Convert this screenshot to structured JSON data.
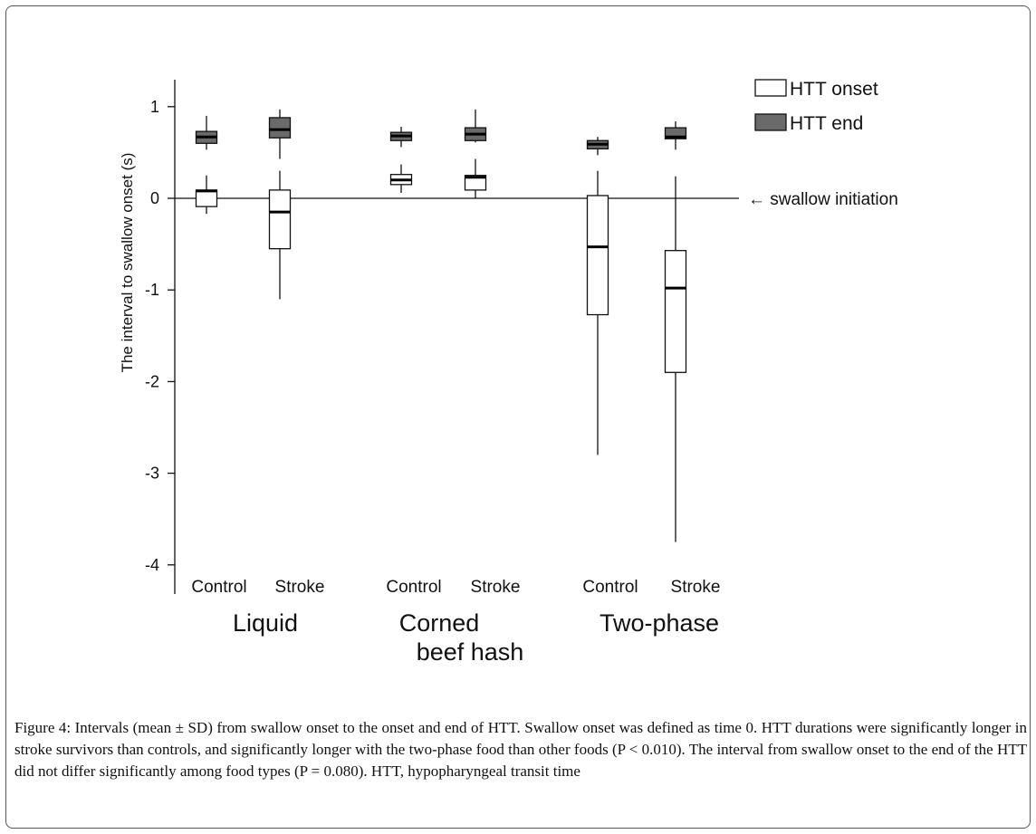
{
  "chart_data": {
    "type": "boxplot",
    "ylabel": "The interval to swallow onset (s)",
    "ylim": [
      -4.3,
      1.3
    ],
    "yticks": [
      -4,
      -3,
      -2,
      -1,
      0,
      1
    ],
    "ytick_labels": [
      "-4",
      "-3",
      "-2",
      "-1",
      "0",
      "1"
    ],
    "groups": [
      {
        "label": "Liquid",
        "label_lines": [
          "Liquid"
        ],
        "categories": [
          "Control",
          "Stroke"
        ]
      },
      {
        "label": "Corned beef hash",
        "label_lines": [
          "Corned",
          "beef hash"
        ],
        "categories": [
          "Control",
          "Stroke"
        ]
      },
      {
        "label": "Two-phase",
        "label_lines": [
          "Two-phase"
        ],
        "categories": [
          "Control",
          "Stroke"
        ]
      }
    ],
    "legend": {
      "placement": "top-right",
      "entries": [
        {
          "name": "HTT onset",
          "color": "#ffffff"
        },
        {
          "name": "HTT end",
          "color": "#6a6a6a"
        }
      ]
    },
    "reference_line": {
      "y": 0,
      "label": "← swallow initiation"
    },
    "series": [
      {
        "name": "HTT onset",
        "color": "#ffffff",
        "boxes": [
          {
            "group": "Liquid",
            "category": "Control",
            "min": -0.17,
            "q1": -0.09,
            "median": 0.08,
            "q3": 0.09,
            "max": 0.25
          },
          {
            "group": "Liquid",
            "category": "Stroke",
            "min": -1.1,
            "q1": -0.55,
            "median": -0.15,
            "q3": 0.09,
            "max": 0.3
          },
          {
            "group": "Corned beef hash",
            "category": "Control",
            "min": 0.06,
            "q1": 0.15,
            "median": 0.2,
            "q3": 0.26,
            "max": 0.37
          },
          {
            "group": "Corned beef hash",
            "category": "Stroke",
            "min": 0.0,
            "q1": 0.09,
            "median": 0.23,
            "q3": 0.25,
            "max": 0.43
          },
          {
            "group": "Two-phase",
            "category": "Control",
            "min": -2.8,
            "q1": -1.27,
            "median": -0.53,
            "q3": 0.03,
            "max": 0.3
          },
          {
            "group": "Two-phase",
            "category": "Stroke",
            "min": -3.75,
            "q1": -1.9,
            "median": -0.98,
            "q3": -0.57,
            "max": 0.24
          }
        ]
      },
      {
        "name": "HTT end",
        "color": "#6a6a6a",
        "boxes": [
          {
            "group": "Liquid",
            "category": "Control",
            "min": 0.53,
            "q1": 0.6,
            "median": 0.67,
            "q3": 0.73,
            "max": 0.9
          },
          {
            "group": "Liquid",
            "category": "Stroke",
            "min": 0.43,
            "q1": 0.66,
            "median": 0.75,
            "q3": 0.88,
            "max": 0.97
          },
          {
            "group": "Corned beef hash",
            "category": "Control",
            "min": 0.56,
            "q1": 0.63,
            "median": 0.68,
            "q3": 0.72,
            "max": 0.78
          },
          {
            "group": "Corned beef hash",
            "category": "Stroke",
            "min": 0.61,
            "q1": 0.63,
            "median": 0.7,
            "q3": 0.77,
            "max": 0.97
          },
          {
            "group": "Two-phase",
            "category": "Control",
            "min": 0.47,
            "q1": 0.54,
            "median": 0.59,
            "q3": 0.63,
            "max": 0.67
          },
          {
            "group": "Two-phase",
            "category": "Stroke",
            "min": 0.53,
            "q1": 0.65,
            "median": 0.67,
            "q3": 0.77,
            "max": 0.84
          }
        ]
      }
    ]
  },
  "caption": {
    "lead": "Figure 4:",
    "text": " Intervals (mean ± SD) from swallow onset to the onset and end of HTT. Swallow onset was defined as time 0. HTT durations were significantly longer in stroke survivors than controls, and significantly longer with the two-phase food than other foods (P < 0.010). The interval from swallow onset to the end of the HTT did not differ significantly among food types (P = 0.080). HTT, hypopharyngeal transit time"
  }
}
